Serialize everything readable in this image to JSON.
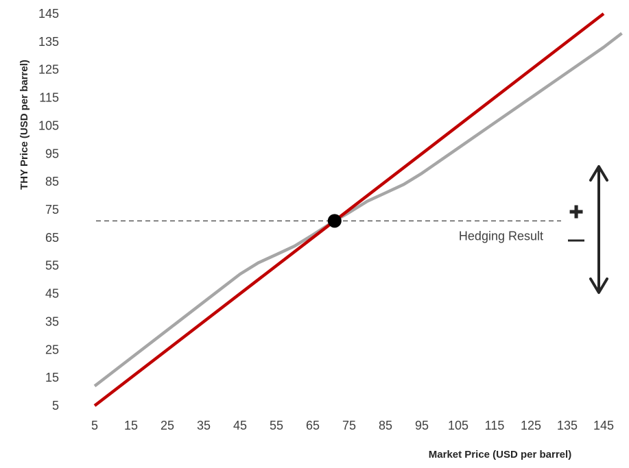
{
  "chart_data": {
    "type": "line",
    "xlabel": "Market Price (USD per barrel)",
    "ylabel": "THY Price (USD per barrel)",
    "xlim": [
      5,
      150
    ],
    "ylim": [
      5,
      148
    ],
    "x_ticks": [
      5,
      15,
      25,
      35,
      45,
      55,
      65,
      75,
      85,
      95,
      105,
      115,
      125,
      135,
      145
    ],
    "y_ticks": [
      5,
      15,
      25,
      35,
      45,
      55,
      65,
      75,
      85,
      95,
      105,
      115,
      125,
      135,
      145
    ],
    "grid": false,
    "series": [
      {
        "color": "#c00000",
        "x": [
          5,
          145
        ],
        "y": [
          5,
          145
        ]
      },
      {
        "color": "#a6a6a6",
        "x": [
          5,
          15,
          25,
          35,
          45,
          50,
          55,
          60,
          65,
          71,
          75,
          80,
          85,
          90,
          95,
          105,
          115,
          125,
          135,
          145,
          150
        ],
        "y": [
          12,
          22,
          32,
          42,
          52,
          56,
          59,
          62,
          66,
          71,
          74,
          78,
          81,
          84,
          88,
          97,
          106,
          115,
          124,
          133,
          138
        ]
      }
    ],
    "reference_point": {
      "x": 71,
      "y": 71,
      "color": "#000000"
    },
    "reference_line": {
      "y": 71,
      "style": "dashed",
      "color": "#595959"
    },
    "annotations": {
      "label": "Hedging Result",
      "plus_symbol": "✚",
      "minus_symbol": "−",
      "arrow": "up-down"
    }
  }
}
